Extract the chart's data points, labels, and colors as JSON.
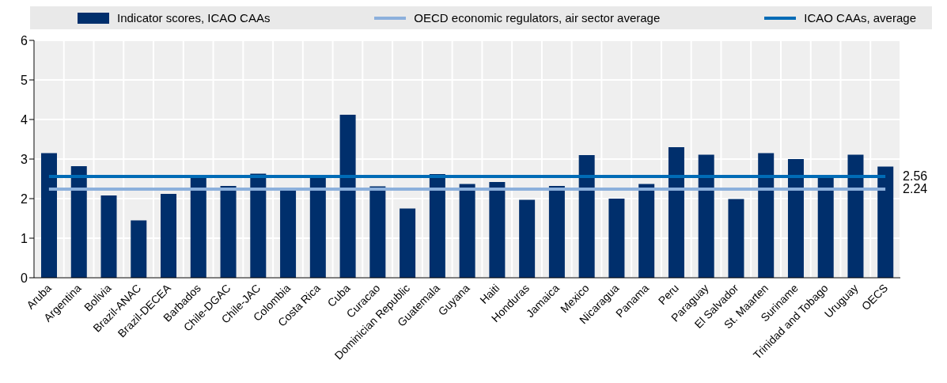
{
  "chart_data": {
    "type": "bar",
    "categories": [
      "Aruba",
      "Argentina",
      "Bolivia",
      "Brazil-ANAC",
      "Brazil-DECEA",
      "Barbados",
      "Chile-DGAC",
      "Chile-JAC",
      "Colombia",
      "Costa Rica",
      "Cuba",
      "Curacao",
      "Dominician Republic",
      "Guatemala",
      "Guyana",
      "Haiti",
      "Honduras",
      "Jamaica",
      "Mexico",
      "Nicaragua",
      "Panama",
      "Peru",
      "Paraguay",
      "El Salvador",
      "St. Maarten",
      "Suriname",
      "Trinidad and Tobago",
      "Uruguay",
      "OECS"
    ],
    "series": [
      {
        "name": "Indicator scores, ICAO CAAs",
        "color": "#002f6c",
        "values": [
          3.15,
          2.82,
          2.08,
          1.45,
          2.12,
          2.55,
          2.32,
          2.63,
          2.2,
          2.55,
          4.12,
          2.31,
          1.75,
          2.62,
          2.37,
          2.42,
          1.97,
          2.32,
          3.1,
          2.0,
          2.37,
          3.3,
          3.11,
          1.99,
          3.15,
          3.0,
          2.55,
          3.11,
          2.81
        ]
      },
      {
        "name": "OECD economic regulators, air sector average",
        "type": "line",
        "color": "#8cb0dc",
        "values": [
          2.24,
          2.24,
          2.24,
          2.24,
          2.24,
          2.24,
          2.24,
          2.24,
          2.24,
          2.24,
          2.24,
          2.24,
          2.24,
          2.24,
          2.24,
          2.24,
          2.24,
          2.24,
          2.24,
          2.24,
          2.24,
          2.24,
          2.24,
          2.24,
          2.24,
          2.24,
          2.24,
          2.24,
          2.24
        ],
        "value_labels": [
          null,
          null,
          null,
          null,
          null,
          null,
          null,
          null,
          null,
          null,
          null,
          null,
          null,
          null,
          null,
          null,
          null,
          null,
          null,
          null,
          null,
          null,
          null,
          null,
          null,
          null,
          null,
          null,
          "2.24"
        ]
      },
      {
        "name": "ICAO CAAs, average",
        "type": "line",
        "color": "#006bb6",
        "values": [
          2.56,
          2.56,
          2.56,
          2.56,
          2.56,
          2.56,
          2.56,
          2.56,
          2.56,
          2.56,
          2.56,
          2.56,
          2.56,
          2.56,
          2.56,
          2.56,
          2.56,
          2.56,
          2.56,
          2.56,
          2.56,
          2.56,
          2.56,
          2.56,
          2.56,
          2.56,
          2.56,
          2.56,
          2.56
        ],
        "value_labels": [
          null,
          null,
          null,
          null,
          null,
          null,
          null,
          null,
          null,
          null,
          null,
          null,
          null,
          null,
          null,
          null,
          null,
          null,
          null,
          null,
          null,
          null,
          null,
          null,
          null,
          null,
          null,
          null,
          "2.56"
        ]
      }
    ],
    "ylim": [
      0,
      6
    ],
    "yticks": [
      0,
      1,
      2,
      3,
      4,
      5,
      6
    ],
    "grid": true,
    "legend": "top",
    "marker": "none",
    "line_style": "solid"
  }
}
